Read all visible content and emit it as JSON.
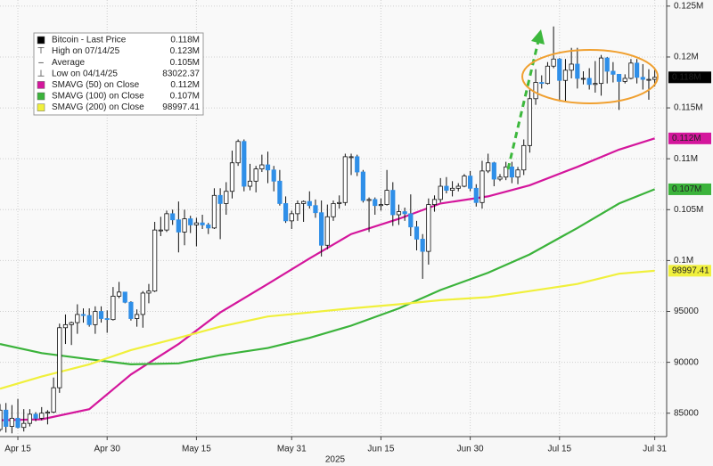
{
  "chart_data": {
    "type": "candlestick",
    "name": "Bitcoin - Last Price",
    "last": {
      "value": 118000,
      "label": "0.118M"
    },
    "up_color": "#ffffff",
    "down_color": "#2f8fe8",
    "wick_color": "#111111",
    "last_color": "#000000",
    "x": [
      "2025-04-12",
      "2025-04-13",
      "2025-04-14",
      "2025-04-15",
      "2025-04-16",
      "2025-04-17",
      "2025-04-18",
      "2025-04-19",
      "2025-04-20",
      "2025-04-21",
      "2025-04-22",
      "2025-04-23",
      "2025-04-24",
      "2025-04-25",
      "2025-04-26",
      "2025-04-27",
      "2025-04-28",
      "2025-04-29",
      "2025-04-30",
      "2025-05-01",
      "2025-05-02",
      "2025-05-03",
      "2025-05-04",
      "2025-05-05",
      "2025-05-06",
      "2025-05-07",
      "2025-05-08",
      "2025-05-09",
      "2025-05-10",
      "2025-05-11",
      "2025-05-12",
      "2025-05-13",
      "2025-05-14",
      "2025-05-15",
      "2025-05-16",
      "2025-05-17",
      "2025-05-18",
      "2025-05-19",
      "2025-05-20",
      "2025-05-21",
      "2025-05-22",
      "2025-05-23",
      "2025-05-24",
      "2025-05-25",
      "2025-05-26",
      "2025-05-27",
      "2025-05-28",
      "2025-05-29",
      "2025-05-30",
      "2025-05-31",
      "2025-06-01",
      "2025-06-02",
      "2025-06-03",
      "2025-06-04",
      "2025-06-05",
      "2025-06-06",
      "2025-06-07",
      "2025-06-08",
      "2025-06-09",
      "2025-06-10",
      "2025-06-11",
      "2025-06-12",
      "2025-06-13",
      "2025-06-14",
      "2025-06-15",
      "2025-06-16",
      "2025-06-17",
      "2025-06-18",
      "2025-06-19",
      "2025-06-20",
      "2025-06-21",
      "2025-06-22",
      "2025-06-23",
      "2025-06-24",
      "2025-06-25",
      "2025-06-26",
      "2025-06-27",
      "2025-06-28",
      "2025-06-29",
      "2025-06-30",
      "2025-07-01",
      "2025-07-02",
      "2025-07-03",
      "2025-07-04",
      "2025-07-05",
      "2025-07-06",
      "2025-07-07",
      "2025-07-08",
      "2025-07-09",
      "2025-07-10",
      "2025-07-11",
      "2025-07-12",
      "2025-07-13",
      "2025-07-14",
      "2025-07-15",
      "2025-07-16",
      "2025-07-17",
      "2025-07-18",
      "2025-07-19",
      "2025-07-20",
      "2025-07-21",
      "2025-07-22",
      "2025-07-23",
      "2025-07-24",
      "2025-07-25",
      "2025-07-26",
      "2025-07-27",
      "2025-07-28",
      "2025-07-29",
      "2025-07-30",
      "2025-07-31"
    ],
    "ohlc": {
      "open": [
        83400,
        85300,
        83700,
        84500,
        83600,
        84000,
        84900,
        84500,
        85000,
        85100,
        87500,
        93400,
        93700,
        93900,
        94700,
        94600,
        93700,
        95000,
        94300,
        94200,
        96500,
        96900,
        95900,
        94300,
        94700,
        96800,
        97000,
        103000,
        103000,
        104600,
        104000,
        102800,
        104100,
        103500,
        103700,
        103500,
        103200,
        106400,
        105600,
        106800,
        109600,
        111700,
        107300,
        107800,
        109000,
        109400,
        108900,
        107800,
        105600,
        103900,
        104600,
        105600,
        105800,
        105400,
        104700,
        101500,
        104300,
        105600,
        105700,
        110200,
        110200,
        108700,
        105900,
        106000,
        105400,
        105500,
        106900,
        104500,
        104800,
        104600,
        103300,
        102100,
        100900,
        105500,
        106000,
        107300,
        106900,
        107100,
        107300,
        108300,
        107100,
        105700,
        108800,
        109600,
        108000,
        108200,
        109200,
        108200,
        108900,
        111300,
        115900,
        117500,
        117400,
        119100,
        119800,
        117700,
        118700,
        119300,
        117900,
        117900,
        117300,
        117400,
        119900,
        118600,
        118300,
        117600,
        117900,
        119400,
        118000,
        117800,
        117800
      ],
      "high": [
        85900,
        86000,
        85800,
        86400,
        85400,
        85400,
        85100,
        85600,
        85300,
        88500,
        93800,
        94700,
        94000,
        95700,
        95300,
        95300,
        95500,
        95500,
        95100,
        97400,
        97900,
        96900,
        96000,
        95200,
        97000,
        97700,
        103800,
        104300,
        104900,
        105000,
        105800,
        105000,
        104400,
        104200,
        104500,
        103700,
        107100,
        107100,
        107700,
        110800,
        111900,
        111900,
        109500,
        109300,
        110400,
        110700,
        109300,
        108900,
        106300,
        104900,
        105900,
        105900,
        106800,
        106000,
        105900,
        105500,
        105900,
        106400,
        110500,
        110500,
        110400,
        108900,
        106200,
        106200,
        106100,
        108900,
        107700,
        105500,
        105200,
        106500,
        103900,
        102600,
        106100,
        106400,
        108100,
        108200,
        107800,
        107600,
        108500,
        108800,
        107500,
        109800,
        110500,
        109700,
        108500,
        109700,
        109700,
        109200,
        111900,
        116800,
        118800,
        118200,
        119500,
        123000,
        119900,
        119800,
        120900,
        120900,
        118600,
        118900,
        119600,
        120200,
        120000,
        119500,
        118300,
        118300,
        119800,
        119800,
        119300,
        118800,
        118900
      ],
      "low": [
        83200,
        83100,
        83022.37,
        83500,
        83200,
        83700,
        84200,
        84300,
        83900,
        85000,
        87000,
        91800,
        91700,
        92800,
        93900,
        93500,
        92800,
        93900,
        92900,
        94100,
        96300,
        95800,
        94100,
        93500,
        93400,
        95800,
        96900,
        102400,
        102800,
        103500,
        100800,
        101500,
        102700,
        101400,
        103100,
        102600,
        103100,
        102100,
        104500,
        106100,
        109300,
        106800,
        106900,
        106700,
        108700,
        107600,
        106800,
        105400,
        103700,
        103100,
        103900,
        103800,
        105100,
        104200,
        100400,
        101100,
        103900,
        105100,
        105400,
        108400,
        108300,
        105700,
        102800,
        104500,
        104900,
        105400,
        103400,
        103500,
        103900,
        102400,
        101000,
        98200,
        99600,
        104800,
        105700,
        106600,
        106300,
        106800,
        107200,
        106800,
        105300,
        105100,
        108600,
        107300,
        107800,
        107900,
        107600,
        107500,
        108400,
        110600,
        115300,
        116900,
        117300,
        118900,
        115800,
        115700,
        117900,
        116900,
        117300,
        116800,
        116500,
        116200,
        117400,
        117500,
        114800,
        117400,
        117800,
        117400,
        116800,
        115800,
        117100
      ],
      "close": [
        85300,
        83700,
        84500,
        83600,
        84000,
        84900,
        84500,
        85000,
        85100,
        87500,
        93400,
        93700,
        93900,
        94700,
        94600,
        93700,
        95000,
        94300,
        94200,
        96500,
        96900,
        95900,
        94300,
        94700,
        96800,
        97000,
        103000,
        103000,
        104600,
        104000,
        102800,
        104100,
        103500,
        103700,
        103500,
        103200,
        106400,
        105600,
        106800,
        109600,
        111700,
        107300,
        107800,
        109000,
        109400,
        108900,
        107800,
        105600,
        103900,
        104600,
        105600,
        105800,
        105400,
        104700,
        101500,
        104300,
        105600,
        105700,
        110200,
        110200,
        108700,
        105900,
        106000,
        105400,
        105500,
        106900,
        104500,
        104800,
        104600,
        103300,
        102100,
        100900,
        105500,
        106000,
        107300,
        106900,
        107100,
        107300,
        108300,
        107100,
        105700,
        108800,
        109600,
        108000,
        108200,
        109200,
        108200,
        108900,
        111300,
        115900,
        117500,
        117400,
        119100,
        119800,
        117700,
        118700,
        119300,
        117900,
        117900,
        117300,
        117400,
        119900,
        118600,
        118300,
        117600,
        117900,
        119400,
        118000,
        117800,
        117800,
        118000
      ]
    },
    "stats": [
      {
        "name": "High on 07/14/25",
        "value": 123000,
        "label": "0.123M"
      },
      {
        "name": "Average",
        "value": 105000,
        "label": "0.105M"
      },
      {
        "name": "Low on 04/14/25",
        "value": 83022.37,
        "label": "83022.37"
      }
    ],
    "lines": [
      {
        "name": "SMAVG (50)  on Close",
        "color": "#d4169c",
        "last": {
          "value": 112000,
          "label": "0.112M"
        },
        "x": [
          "2025-04-12",
          "2025-04-19",
          "2025-04-27",
          "2025-05-04",
          "2025-05-12",
          "2025-05-19",
          "2025-05-27",
          "2025-06-03",
          "2025-06-10",
          "2025-06-18",
          "2025-06-25",
          "2025-07-03",
          "2025-07-10",
          "2025-07-18",
          "2025-07-25",
          "2025-07-31"
        ],
        "values": [
          84300,
          84400,
          85400,
          88800,
          91800,
          94900,
          97700,
          100200,
          102600,
          104100,
          105600,
          106300,
          107400,
          109200,
          110900,
          112000
        ]
      },
      {
        "name": "SMAVG (100)  on Close",
        "color": "#3bb33b",
        "last": {
          "value": 107000,
          "label": "0.107M"
        },
        "x": [
          "2025-04-12",
          "2025-04-19",
          "2025-04-27",
          "2025-05-04",
          "2025-05-12",
          "2025-05-19",
          "2025-05-27",
          "2025-06-03",
          "2025-06-10",
          "2025-06-18",
          "2025-06-25",
          "2025-07-03",
          "2025-07-10",
          "2025-07-18",
          "2025-07-25",
          "2025-07-31"
        ],
        "values": [
          91800,
          90900,
          90300,
          89800,
          89900,
          90700,
          91400,
          92400,
          93600,
          95300,
          97100,
          98800,
          100600,
          103200,
          105600,
          107000
        ]
      },
      {
        "name": "SMAVG (200)  on Close",
        "color": "#f0f03c",
        "last": {
          "value": 98997.41,
          "label": "98997.41"
        },
        "x": [
          "2025-04-12",
          "2025-04-19",
          "2025-04-27",
          "2025-05-04",
          "2025-05-12",
          "2025-05-19",
          "2025-05-27",
          "2025-06-03",
          "2025-06-10",
          "2025-06-18",
          "2025-06-25",
          "2025-07-03",
          "2025-07-10",
          "2025-07-18",
          "2025-07-25",
          "2025-07-31"
        ],
        "values": [
          87400,
          88600,
          89800,
          91200,
          92400,
          93500,
          94500,
          94900,
          95300,
          95700,
          96100,
          96400,
          97000,
          97700,
          98700,
          98997.41
        ]
      }
    ],
    "xlim": [
      "2025-04-12",
      "2025-08-02"
    ],
    "xticks": [
      {
        "value": "2025-04-15",
        "label": "Apr 15"
      },
      {
        "value": "2025-04-30",
        "label": "Apr 30"
      },
      {
        "value": "2025-05-15",
        "label": "May 15"
      },
      {
        "value": "2025-05-31",
        "label": "May 31"
      },
      {
        "value": "2025-06-15",
        "label": "Jun 15"
      },
      {
        "value": "2025-06-30",
        "label": "Jun 30"
      },
      {
        "value": "2025-07-15",
        "label": "Jul 15"
      },
      {
        "value": "2025-07-31",
        "label": "Jul 31"
      }
    ],
    "xlabel": "2025",
    "ylim": [
      82700,
      125600
    ],
    "yticks": [
      85000,
      90000,
      95000,
      {
        "value": 100000,
        "label": "0.1M"
      },
      {
        "value": 105000,
        "label": "0.105M"
      },
      {
        "value": 110000,
        "label": "0.11M"
      },
      {
        "value": 115000,
        "label": "0.115M"
      },
      {
        "value": 120000,
        "label": "0.12M"
      },
      {
        "value": 125000,
        "label": "0.125M"
      }
    ],
    "grid": true
  }
}
